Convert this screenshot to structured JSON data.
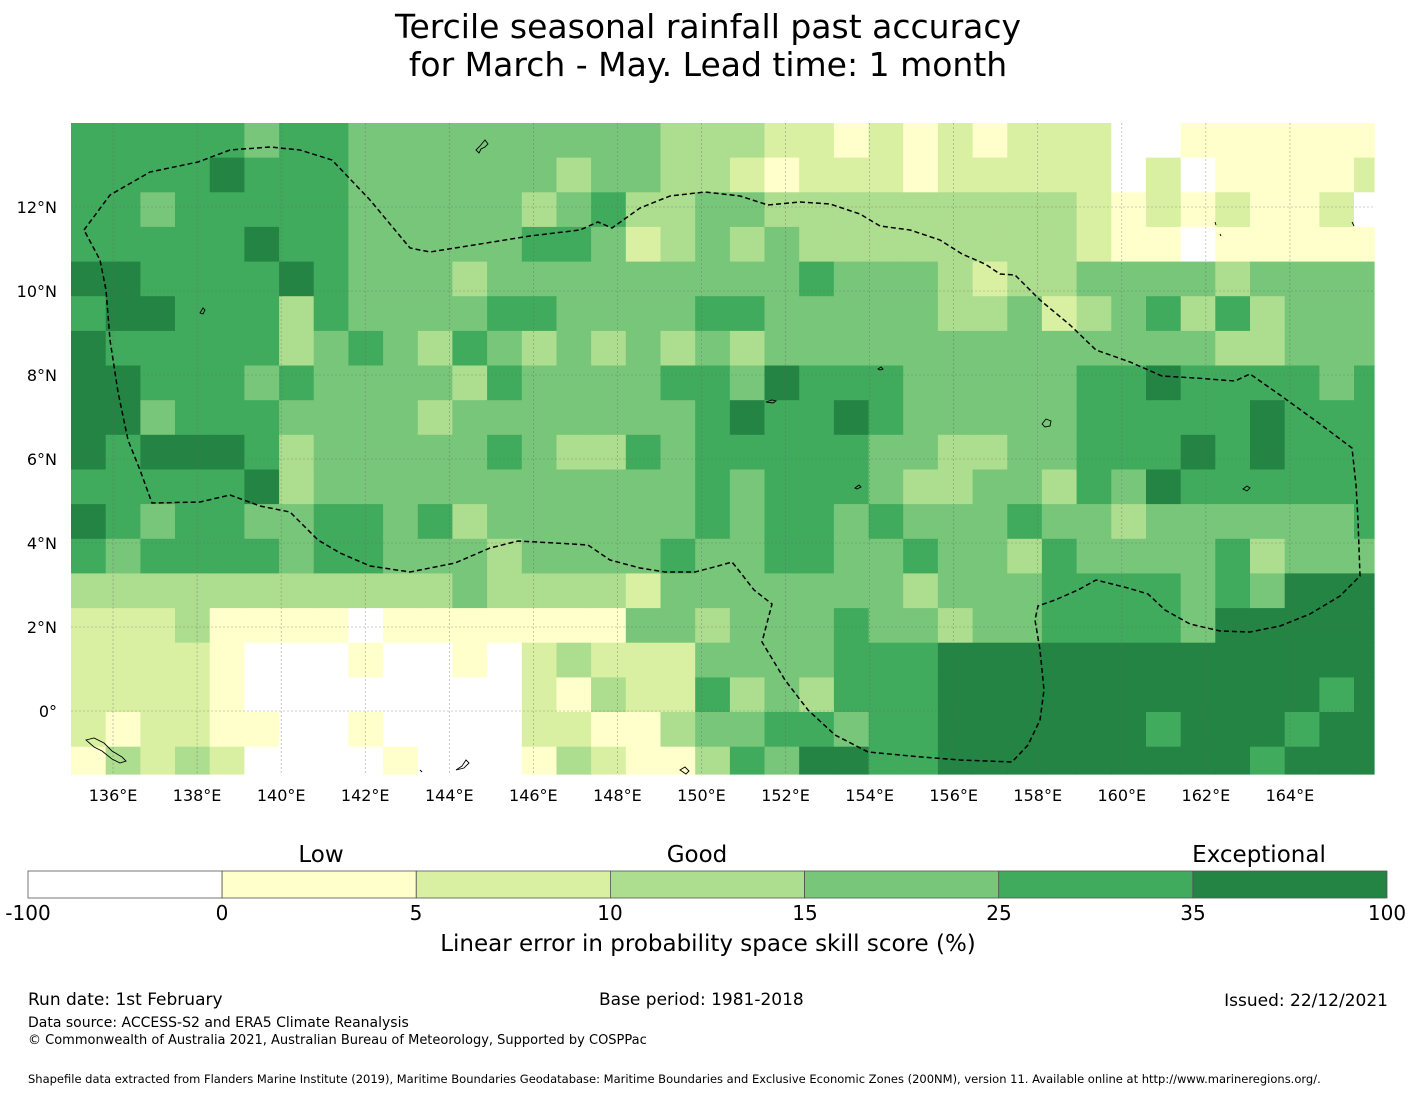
{
  "title": {
    "line1": "Tercile seasonal rainfall past accuracy",
    "line2": "for March - May. Lead time: 1 month"
  },
  "map": {
    "lon_range": [
      135,
      166
    ],
    "lat_range": [
      -1.5,
      14
    ],
    "x_ticks": [
      "136°E",
      "138°E",
      "140°E",
      "142°E",
      "144°E",
      "146°E",
      "148°E",
      "150°E",
      "152°E",
      "154°E",
      "156°E",
      "158°E",
      "160°E",
      "162°E",
      "164°E"
    ],
    "y_ticks": [
      "12°N",
      "10°N",
      "8°N",
      "6°N",
      "4°N",
      "2°N",
      "0°"
    ],
    "eez_boundary": "dashed black line",
    "grid": true
  },
  "colorbar": {
    "headings": [
      "Low",
      "Good",
      "Exceptional"
    ],
    "ticks": [
      "-100",
      "0",
      "5",
      "10",
      "15",
      "25",
      "35",
      "100"
    ],
    "colors": [
      "#ffffff",
      "#ffffcc",
      "#d9f0a3",
      "#addd8e",
      "#78c679",
      "#41ab5d",
      "#238443"
    ],
    "label": "Linear error in probability space skill score (%)"
  },
  "footer": {
    "run_date": "Run date: 1st February",
    "base_period": "Base period: 1981-2018",
    "issued": "Issued: 22/12/2021",
    "data_source": "Data source: ACCESS-S2 and ERA5 Climate Reanalysis",
    "copyright": "© Commonwealth of Australia 2021, Australian Bureau of Meteorology, Supported by COSPPac",
    "shapefile": "Shapefile data extracted from Flanders Marine Institute (2019), Maritime Boundaries Geodatabase: Maritime Boundaries and Exclusive Economic Zones (200NM), version 11. Available online at http://www.marineregions.org/."
  }
}
